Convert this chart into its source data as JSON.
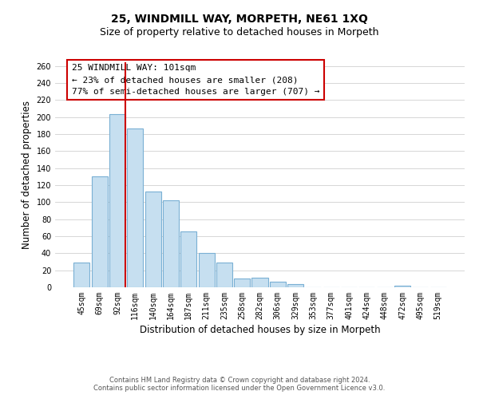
{
  "title": "25, WINDMILL WAY, MORPETH, NE61 1XQ",
  "subtitle": "Size of property relative to detached houses in Morpeth",
  "xlabel": "Distribution of detached houses by size in Morpeth",
  "ylabel": "Number of detached properties",
  "bar_labels": [
    "45sqm",
    "69sqm",
    "92sqm",
    "116sqm",
    "140sqm",
    "164sqm",
    "187sqm",
    "211sqm",
    "235sqm",
    "258sqm",
    "282sqm",
    "306sqm",
    "329sqm",
    "353sqm",
    "377sqm",
    "401sqm",
    "424sqm",
    "448sqm",
    "472sqm",
    "495sqm",
    "519sqm"
  ],
  "bar_values": [
    29,
    130,
    204,
    187,
    113,
    102,
    66,
    40,
    29,
    10,
    11,
    7,
    4,
    0,
    0,
    0,
    0,
    0,
    2,
    0,
    0
  ],
  "bar_color": "#c6dff0",
  "bar_edge_color": "#7ab0d4",
  "highlight_line_color": "#cc0000",
  "annotation_text_line1": "25 WINDMILL WAY: 101sqm",
  "annotation_text_line2": "← 23% of detached houses are smaller (208)",
  "annotation_text_line3": "77% of semi-detached houses are larger (707) →",
  "annotation_box_color": "#ffffff",
  "annotation_box_edge_color": "#cc0000",
  "ylim": [
    0,
    265
  ],
  "yticks": [
    0,
    20,
    40,
    60,
    80,
    100,
    120,
    140,
    160,
    180,
    200,
    220,
    240,
    260
  ],
  "footer_line1": "Contains HM Land Registry data © Crown copyright and database right 2024.",
  "footer_line2": "Contains public sector information licensed under the Open Government Licence v3.0.",
  "background_color": "#ffffff",
  "grid_color": "#d0d0d0",
  "title_fontsize": 10,
  "subtitle_fontsize": 9,
  "axis_label_fontsize": 8.5,
  "tick_fontsize": 7,
  "annotation_fontsize": 8,
  "footer_fontsize": 6
}
